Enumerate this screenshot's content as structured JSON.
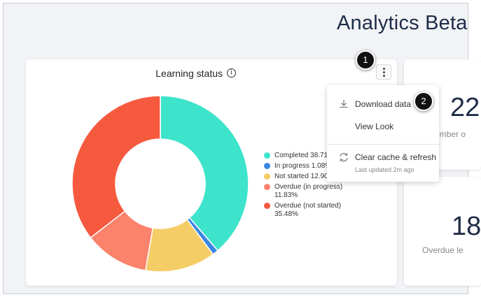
{
  "page": {
    "title": "Analytics Beta"
  },
  "learning_status": {
    "title": "Learning status",
    "info": "i"
  },
  "chart_data": {
    "type": "pie",
    "categories": [
      "Completed",
      "In progress",
      "Not started",
      "Overdue (in progress)",
      "Overdue (not started)"
    ],
    "values": [
      38.71,
      1.08,
      12.9,
      11.83,
      35.48
    ],
    "colors": [
      "#3de3cb",
      "#3b87e0",
      "#f5cd67",
      "#fb826b",
      "#f65a3e"
    ],
    "legend_labels": [
      "Completed 38.71",
      "In progress 1.08%",
      "Not started 12.90",
      "Overdue (in progress) 11.83%",
      "Overdue (not started) 35.48%"
    ],
    "donut": true,
    "legend": "right"
  },
  "menu": {
    "download": "Download data",
    "view_look": "View Look",
    "clear_cache": "Clear cache & refresh",
    "last_updated": "Last updated 2m ago"
  },
  "right_cards": {
    "top": {
      "number": "22",
      "label": "umber o"
    },
    "bottom": {
      "number": "18",
      "label": "Overdue le"
    }
  },
  "callouts": {
    "one": "1",
    "two": "2"
  }
}
